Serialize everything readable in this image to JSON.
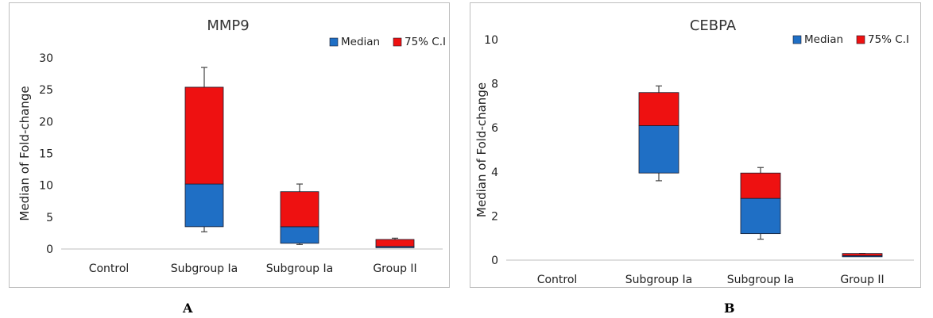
{
  "figure_labels": [
    "A",
    "B"
  ],
  "chart_data": [
    {
      "type": "bar",
      "title": "MMP9",
      "ylabel": "Median of Fold-change",
      "xlabel": "",
      "categories": [
        "Control",
        "Subgroup Ia",
        "Subgroup Ia",
        "Group II"
      ],
      "y_ticks": [
        0,
        5,
        10,
        15,
        20,
        25,
        30
      ],
      "ylim": [
        0,
        30
      ],
      "legend_position": "top-right",
      "stack_base": [
        0,
        3.5,
        0.9,
        0.2
      ],
      "series": [
        {
          "name": "Median",
          "color": "#1f6fc5",
          "values": [
            0,
            6.7,
            2.6,
            0.2
          ]
        },
        {
          "name": "75% C.I",
          "color": "#ee1111",
          "values": [
            0,
            15.2,
            5.5,
            1.1
          ]
        }
      ],
      "error_low": [
        null,
        2.7,
        0.7,
        null
      ],
      "error_high": [
        null,
        28.5,
        10.2,
        1.7
      ],
      "grid": false
    },
    {
      "type": "bar",
      "title": "CEBPA",
      "ylabel": "Median of Fold-change",
      "xlabel": "",
      "categories": [
        "Control",
        "Subgroup Ia",
        "Subgroup Ia",
        "Group II"
      ],
      "y_ticks": [
        0,
        2,
        4,
        6,
        8,
        10
      ],
      "ylim": [
        0,
        10
      ],
      "legend_position": "top-right",
      "stack_base": [
        0,
        3.95,
        1.2,
        0.15
      ],
      "series": [
        {
          "name": "Median",
          "color": "#1f6fc5",
          "values": [
            0,
            2.15,
            1.6,
            0.05
          ]
        },
        {
          "name": "75% C.I",
          "color": "#ee1111",
          "values": [
            0,
            1.5,
            1.15,
            0.1
          ]
        }
      ],
      "error_low": [
        null,
        3.6,
        0.95,
        null
      ],
      "error_high": [
        null,
        7.9,
        4.2,
        0.3
      ],
      "grid": false
    }
  ]
}
